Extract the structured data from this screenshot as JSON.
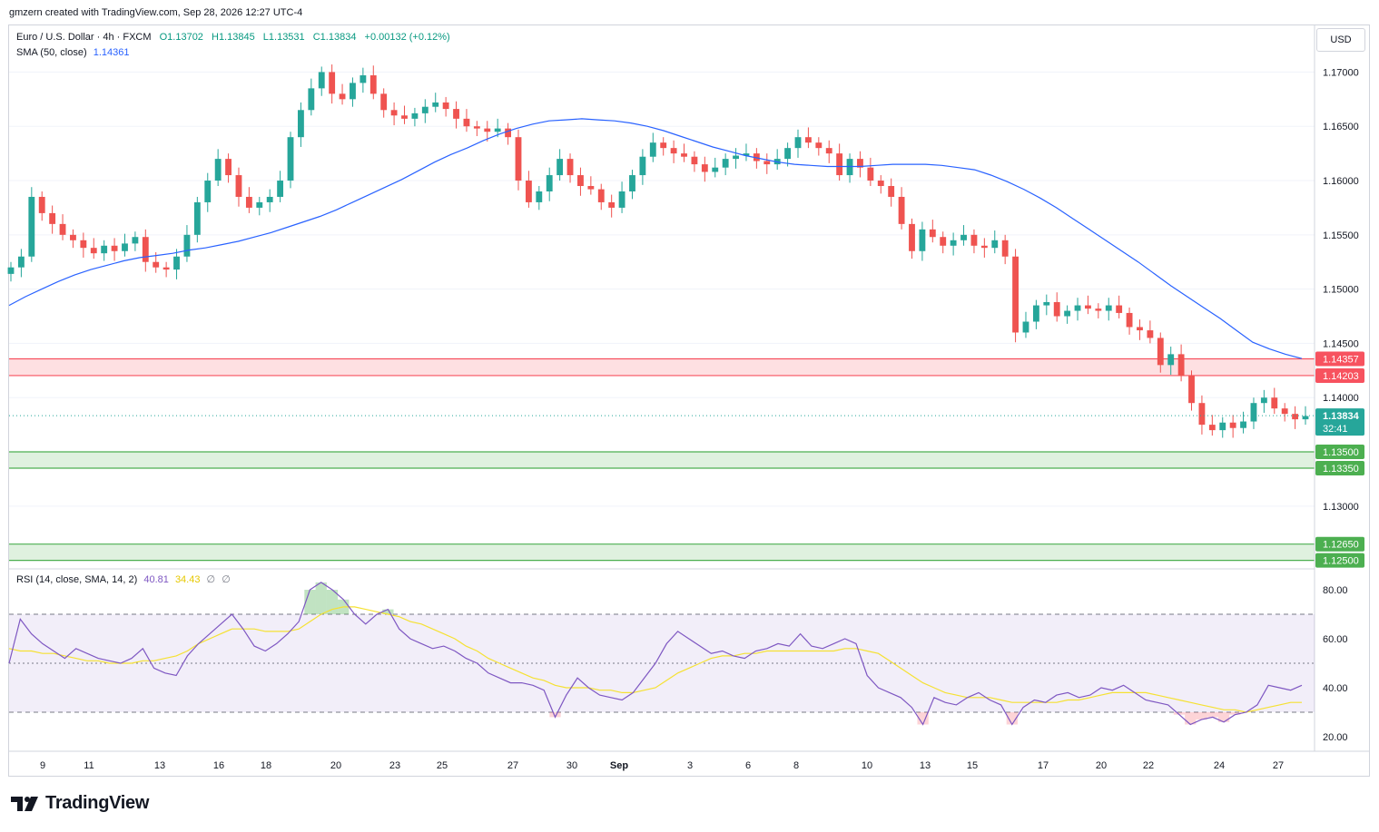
{
  "header": {
    "attribution": "gmzern created with TradingView.com, Sep 28, 2026 12:27 UTC-4",
    "symbol": "Euro / U.S. Dollar · 4h · FXCM",
    "ohlc": {
      "o": "O1.13702",
      "h": "H1.13845",
      "l": "L1.13531",
      "c": "C1.13834",
      "chg": "+0.00132 (+0.12%)"
    },
    "sma_label": "SMA (50, close)",
    "sma_value": "1.14361",
    "rsi_label": "RSI (14, close, SMA, 14, 2)",
    "rsi_value": "40.81",
    "rsi_sma_value": "34.43",
    "rsi_extra1": "∅",
    "rsi_extra2": "∅"
  },
  "currency_button": "USD",
  "countdown": "32:41",
  "brand": "TradingView",
  "colors": {
    "up": "#26a69a",
    "down": "#ef5350",
    "sma": "#2962ff",
    "rsi": "#7e57c2",
    "rsi_ma": "#f5e132",
    "resistance": "#f7525f",
    "support": "#4caf50"
  },
  "chart_data": {
    "type": "candlestick",
    "price_axis": {
      "ticks": [
        "1.17000",
        "1.16500",
        "1.16000",
        "1.15500",
        "1.15000",
        "1.14500",
        "1.14000",
        "1.13000"
      ],
      "range": [
        1.1243,
        1.1743
      ]
    },
    "time_axis": {
      "ticks": [
        "9",
        "11",
        "13",
        "16",
        "18",
        "20",
        "23",
        "25",
        "27",
        "30",
        "Sep",
        "3",
        "6",
        "8",
        "10",
        "13",
        "15",
        "17",
        "20",
        "22",
        "24",
        "27"
      ]
    },
    "last_price": "1.13834",
    "zones": [
      {
        "kind": "resistance",
        "top": "1.14357",
        "bottom": "1.14203"
      },
      {
        "kind": "support",
        "top": "1.13500",
        "bottom": "1.13350"
      },
      {
        "kind": "support",
        "top": "1.12650",
        "bottom": "1.12500"
      }
    ],
    "close_series": [
      1.152,
      1.153,
      1.1585,
      1.157,
      1.156,
      1.155,
      1.1545,
      1.1538,
      1.1533,
      1.154,
      1.1535,
      1.1542,
      1.1548,
      1.1525,
      1.152,
      1.1518,
      1.153,
      1.155,
      1.158,
      1.16,
      1.162,
      1.1605,
      1.1585,
      1.1575,
      1.158,
      1.1585,
      1.16,
      1.164,
      1.1665,
      1.1685,
      1.17,
      1.168,
      1.1675,
      1.169,
      1.1697,
      1.168,
      1.1665,
      1.166,
      1.1657,
      1.1662,
      1.1668,
      1.1672,
      1.1666,
      1.1657,
      1.165,
      1.1648,
      1.1645,
      1.1648,
      1.164,
      1.16,
      1.158,
      1.159,
      1.1605,
      1.162,
      1.1605,
      1.1595,
      1.1592,
      1.158,
      1.1575,
      1.159,
      1.1605,
      1.1622,
      1.1635,
      1.163,
      1.1625,
      1.1622,
      1.1615,
      1.1608,
      1.1612,
      1.162,
      1.1623,
      1.1625,
      1.1618,
      1.1615,
      1.162,
      1.163,
      1.164,
      1.1635,
      1.163,
      1.1625,
      1.1605,
      1.162,
      1.1612,
      1.16,
      1.1595,
      1.1585,
      1.156,
      1.1535,
      1.1555,
      1.1548,
      1.154,
      1.1545,
      1.155,
      1.154,
      1.1538,
      1.1545,
      1.153,
      1.146,
      1.147,
      1.1485,
      1.1488,
      1.1475,
      1.148,
      1.1485,
      1.1482,
      1.148,
      1.1485,
      1.1478,
      1.1465,
      1.1462,
      1.1455,
      1.143,
      1.144,
      1.142,
      1.1395,
      1.1375,
      1.137,
      1.1377,
      1.1372,
      1.1378,
      1.1395,
      1.14,
      1.139,
      1.1385,
      1.138,
      1.1383
    ],
    "sma_series": [
      1.1485,
      1.1493,
      1.15,
      1.1507,
      1.1513,
      1.1518,
      1.1522,
      1.1526,
      1.1529,
      1.1531,
      1.1533,
      1.1536,
      1.1538,
      1.1541,
      1.1544,
      1.1548,
      1.1552,
      1.1557,
      1.1562,
      1.1567,
      1.1573,
      1.158,
      1.1587,
      1.1594,
      1.1601,
      1.1609,
      1.1617,
      1.1624,
      1.163,
      1.1637,
      1.1643,
      1.1648,
      1.1652,
      1.1655,
      1.1656,
      1.1657,
      1.1656,
      1.1655,
      1.1653,
      1.165,
      1.1646,
      1.1641,
      1.1636,
      1.1631,
      1.1627,
      1.1623,
      1.162,
      1.1617,
      1.1615,
      1.1614,
      1.1613,
      1.1613,
      1.1613,
      1.1614,
      1.1615,
      1.1615,
      1.1615,
      1.1614,
      1.1612,
      1.161,
      1.1605,
      1.1599,
      1.1592,
      1.1584,
      1.1575,
      1.1565,
      1.1555,
      1.1545,
      1.1535,
      1.1525,
      1.1514,
      1.1503,
      1.1493,
      1.1483,
      1.1473,
      1.1462,
      1.1451,
      1.1445,
      1.144,
      1.1436
    ],
    "rsi_series": [
      50,
      68,
      62,
      58,
      55,
      52,
      56,
      54,
      52,
      51,
      50,
      52,
      56,
      48,
      46,
      45,
      53,
      58,
      62,
      66,
      70,
      64,
      57,
      55,
      58,
      62,
      67,
      80,
      83,
      80,
      76,
      70,
      66,
      70,
      72,
      64,
      60,
      58,
      56,
      57,
      55,
      52,
      50,
      46,
      44,
      42,
      42,
      41,
      39,
      28,
      37,
      44,
      40,
      37,
      36,
      35,
      38,
      44,
      50,
      58,
      63,
      60,
      57,
      54,
      55,
      53,
      52,
      55,
      56,
      58,
      57,
      62,
      57,
      56,
      58,
      60,
      58,
      45,
      40,
      38,
      36,
      32,
      25,
      36,
      34,
      33,
      36,
      38,
      35,
      33,
      25,
      32,
      35,
      34,
      37,
      38,
      36,
      37,
      40,
      39,
      41,
      38,
      35,
      34,
      33,
      29,
      25,
      27,
      28,
      26,
      29,
      30,
      33,
      41,
      40,
      39,
      41
    ],
    "rsi_ma_series": [
      56,
      55,
      55,
      54,
      54,
      53,
      52,
      51,
      51,
      50,
      50,
      50,
      51,
      51,
      52,
      53,
      55,
      58,
      60,
      62,
      64,
      64,
      64,
      63,
      63,
      63,
      64,
      67,
      70,
      72,
      73,
      73,
      72,
      71,
      70,
      69,
      67,
      66,
      64,
      62,
      60,
      57,
      55,
      52,
      50,
      48,
      46,
      44,
      43,
      41,
      40,
      40,
      40,
      39,
      39,
      38,
      38,
      39,
      40,
      43,
      46,
      48,
      50,
      52,
      53,
      53,
      54,
      54,
      55,
      55,
      55,
      55,
      55,
      55,
      55,
      56,
      56,
      55,
      54,
      51,
      48,
      45,
      42,
      40,
      38,
      37,
      36,
      36,
      36,
      35,
      34,
      34,
      34,
      34,
      34,
      35,
      35,
      36,
      37,
      38,
      38,
      38,
      38,
      37,
      36,
      35,
      34,
      33,
      32,
      31,
      31,
      30,
      31,
      32,
      33,
      34,
      34
    ],
    "rsi_axis": {
      "ticks": [
        "80.00",
        "60.00",
        "40.00",
        "20.00"
      ],
      "bands": [
        70,
        50,
        30
      ]
    }
  }
}
